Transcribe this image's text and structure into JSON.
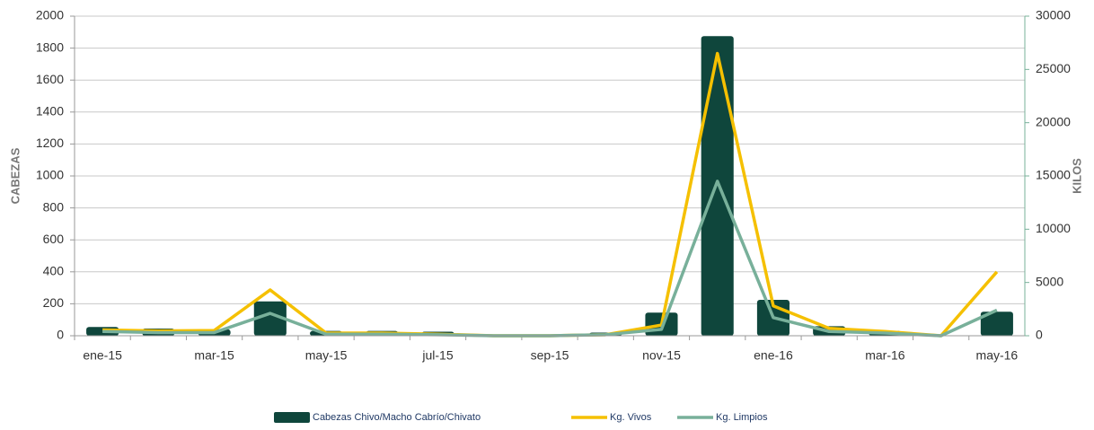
{
  "chart_data": {
    "type": "bar_line",
    "ylabel": "CABEZAS",
    "y2label": "KILOS",
    "categories": [
      "ene-15",
      null,
      "mar-15",
      null,
      "may-15",
      null,
      "jul-15",
      null,
      "sep-15",
      null,
      "nov-15",
      null,
      "ene-16",
      null,
      "mar-16",
      null,
      "may-16"
    ],
    "series": [
      {
        "name": "Cabezas Chivo/Macho Cabrío/Chivato",
        "type": "bar",
        "color": "#0f463c",
        "values": [
          55,
          45,
          40,
          215,
          30,
          30,
          25,
          0,
          0,
          20,
          145,
          1875,
          225,
          60,
          30,
          0,
          150
        ]
      },
      {
        "name": "Kg. Vivos",
        "type": "line",
        "axis": "y2",
        "color": "#f5c000",
        "values": [
          550,
          450,
          500,
          4300,
          250,
          250,
          150,
          0,
          0,
          100,
          1000,
          26500,
          2800,
          700,
          400,
          0,
          6000
        ]
      },
      {
        "name": "Kg. Limpios",
        "type": "line",
        "axis": "y2",
        "color": "#78b09a",
        "values": [
          400,
          300,
          300,
          2100,
          150,
          150,
          100,
          0,
          0,
          100,
          600,
          14500,
          1700,
          400,
          250,
          0,
          2400
        ]
      }
    ],
    "ylim": [
      0,
      2000
    ],
    "yticks": [
      0,
      200,
      400,
      600,
      800,
      1000,
      1200,
      1400,
      1600,
      1800,
      2000
    ],
    "y2lim": [
      0,
      30000
    ],
    "y2ticks": [
      0,
      5000,
      10000,
      15000,
      20000,
      25000,
      30000
    ],
    "grid": true,
    "legend": "bottom"
  }
}
